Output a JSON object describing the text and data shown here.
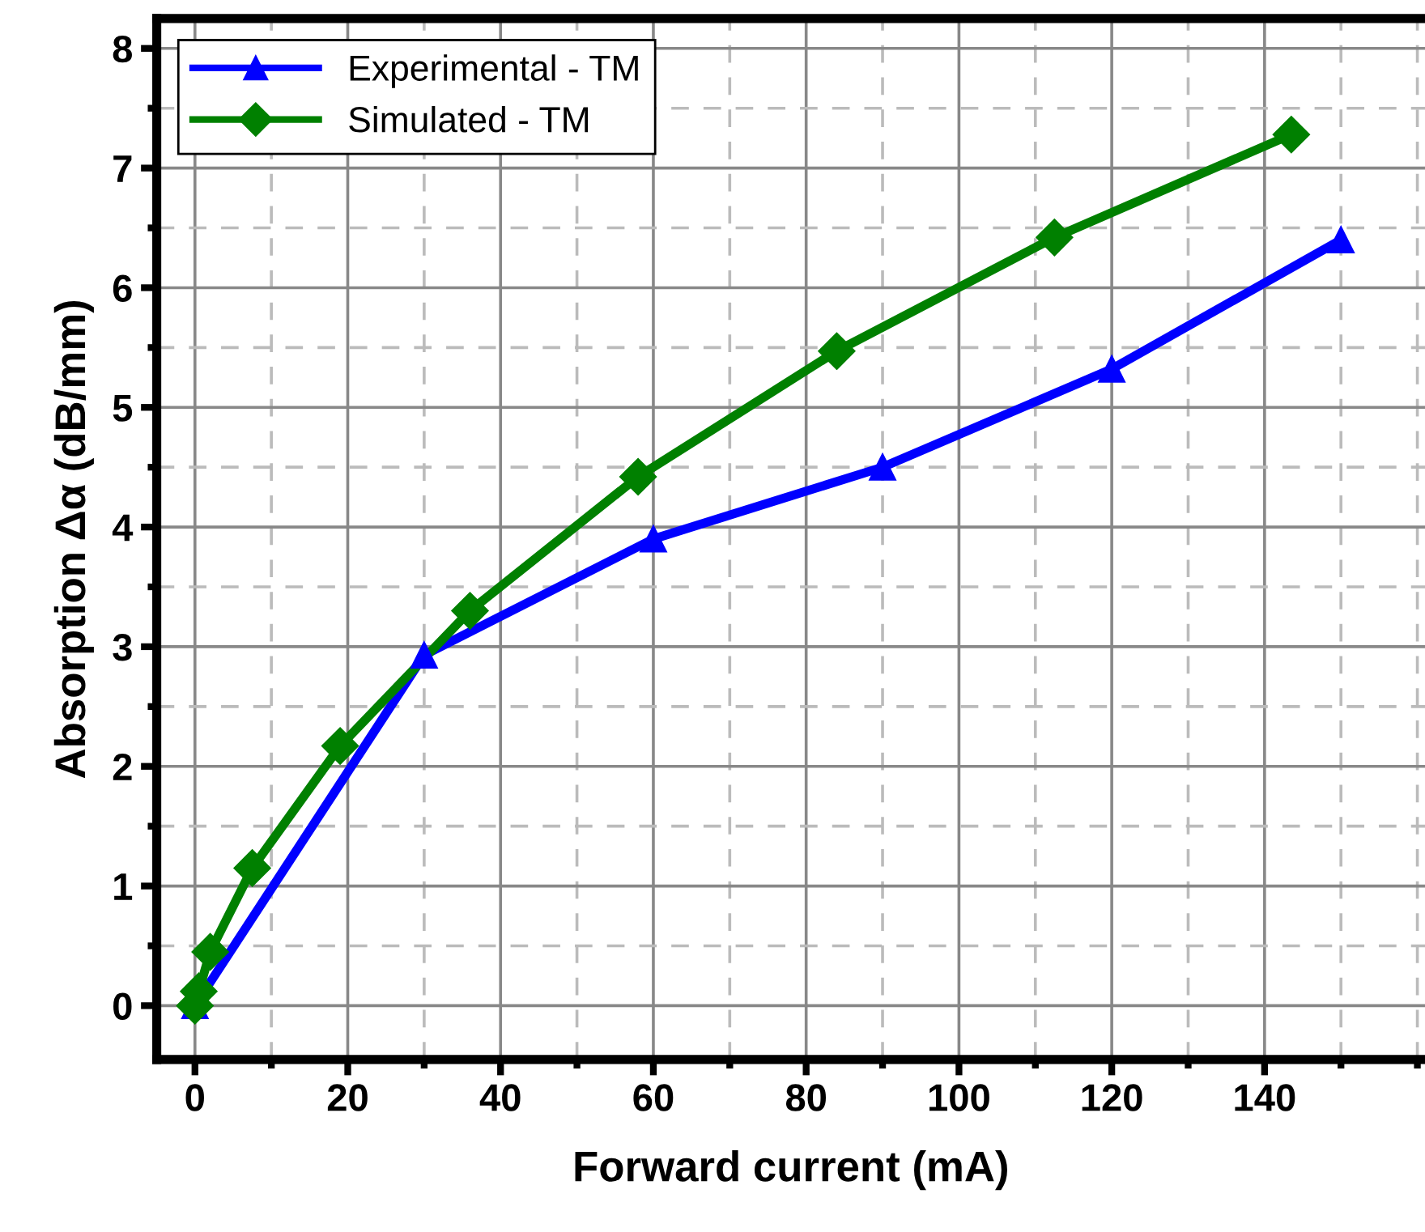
{
  "chart_data": {
    "type": "line",
    "xlabel": "Forward current (mA)",
    "ylabel": "Absorption Δα (dB/mm)",
    "xlim": [
      -5,
      161
    ],
    "ylim": [
      -0.45,
      8.25
    ],
    "xticks": [
      0,
      20,
      40,
      60,
      80,
      100,
      120,
      140
    ],
    "yticks": [
      0,
      1,
      2,
      3,
      4,
      5,
      6,
      7,
      8
    ],
    "grid": true,
    "legend": "top left",
    "line_style": "solid",
    "series": [
      {
        "name": "Experimental - TM",
        "color": "#0000ff",
        "marker": "triangle",
        "x": [
          0,
          30,
          60,
          90,
          120,
          150
        ],
        "values": [
          0,
          2.93,
          3.9,
          4.5,
          5.32,
          6.4
        ]
      },
      {
        "name": "Simulated - TM",
        "color": "#008000",
        "marker": "diamond",
        "x": [
          0,
          0.5,
          2,
          7.5,
          19,
          36,
          58,
          84,
          112.5,
          143.5
        ],
        "values": [
          0,
          0.12,
          0.45,
          1.15,
          2.17,
          3.3,
          4.42,
          5.47,
          6.42,
          7.28
        ]
      }
    ]
  }
}
